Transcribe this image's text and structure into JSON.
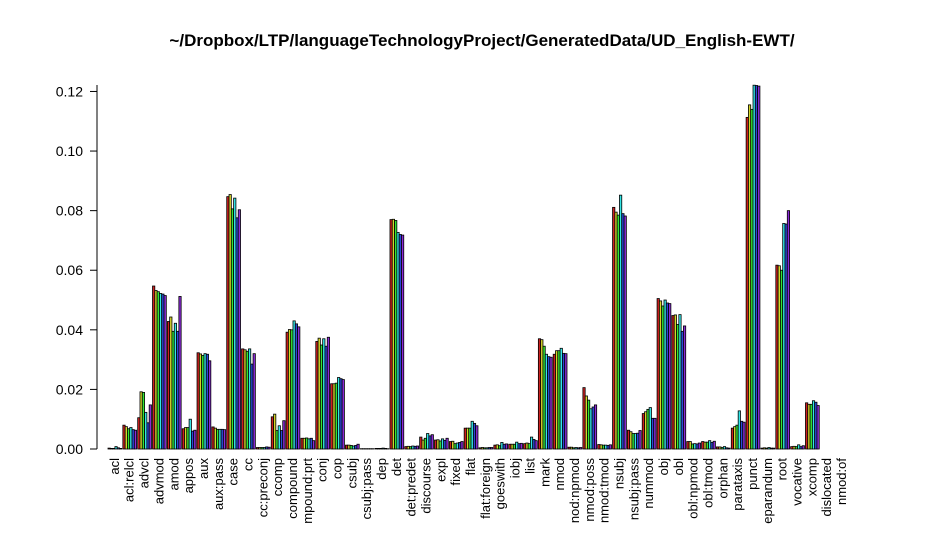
{
  "chart_data": {
    "type": "bar",
    "title": "~/Dropbox/LTP/languageTechnologyProject/GeneratedData/UD_English-EWT/",
    "xlabel": "",
    "ylabel": "",
    "ylim": [
      0,
      0.122
    ],
    "yticks": [
      "0.00",
      "0.02",
      "0.04",
      "0.06",
      "0.08",
      "0.10",
      "0.12"
    ],
    "grid": false,
    "legend": "none",
    "series_colors": [
      "#cc2020",
      "#d6d62a",
      "#33e633",
      "#33e6e6",
      "#2a4ad6",
      "#8a2ad6"
    ],
    "categories": [
      "acl",
      "acl:relcl",
      "advcl",
      "advmod",
      "amod",
      "appos",
      "aux",
      "aux:pass",
      "case",
      "cc",
      "cc:preconj",
      "ccomp",
      "compound",
      "compound:prt",
      "conj",
      "cop",
      "csubj",
      "csubj:pass",
      "dep",
      "det",
      "det:predet",
      "discourse",
      "expl",
      "fixed",
      "flat",
      "flat:foreign",
      "goeswith",
      "iobj",
      "list",
      "mark",
      "nmod",
      "nmod:npmod",
      "nmod:poss",
      "nmod:tmod",
      "nsubj",
      "nsubj:pass",
      "nummod",
      "obj",
      "obl",
      "obl:npmod",
      "obl:tmod",
      "orphan",
      "parataxis",
      "punct",
      "reparandum",
      "root",
      "vocative",
      "xcomp",
      "dislocated",
      "nmod:of"
    ],
    "category_display": [
      "acl",
      "acl:relcl",
      "advcl",
      "advmod",
      "amod",
      "appos",
      "aux",
      "aux:pass",
      "case",
      "cc",
      "cc:preconj",
      "ccomp",
      "compound",
      "mpound:prt",
      "conj",
      "cop",
      "csubj",
      "csubj:pass",
      "dep",
      "det",
      "det:predet",
      "discourse",
      "expl",
      "fixed",
      "flat",
      "flat:foreign",
      "goeswith",
      "iobj",
      "list",
      "mark",
      "nmod",
      "nod:npmod",
      "nmod:poss",
      "nmod:tmod",
      "nsubj",
      "nsubj:pass",
      "nummod",
      "obj",
      "obl",
      "obl:npmod",
      "obl:tmod",
      "orphan",
      "parataxis",
      "punct",
      "eparandum",
      "root",
      "vocative",
      "xcomp",
      "dislocated",
      "nmod:of"
    ],
    "series": [
      {
        "values": [
          0.0003,
          0.008,
          0.0105,
          0.0547,
          0.0428,
          0.0068,
          0.0323,
          0.0074,
          0.0847,
          0.0336,
          0.0005,
          0.0108,
          0.0392,
          0.0036,
          0.0361,
          0.0219,
          0.0013,
          0.0001,
          0.0002,
          0.077,
          0.0008,
          0.004,
          0.003,
          0.0025,
          0.007,
          0.0004,
          0.0013,
          0.0016,
          0.0018,
          0.037,
          0.0318,
          0.0006,
          0.0206,
          0.0015,
          0.0811,
          0.0063,
          0.0119,
          0.0505,
          0.0448,
          0.0025,
          0.0025,
          0.0007,
          0.007,
          0.1113,
          0.0003,
          0.0617,
          0.0008,
          0.0155,
          0.0,
          0.0
        ]
      },
      {
        "values": [
          0.0002,
          0.0075,
          0.0192,
          0.0532,
          0.0443,
          0.0072,
          0.0319,
          0.007,
          0.0854,
          0.0333,
          0.0005,
          0.0117,
          0.0401,
          0.0036,
          0.0372,
          0.0219,
          0.0013,
          0.0001,
          0.0002,
          0.0771,
          0.0009,
          0.003,
          0.0031,
          0.0026,
          0.007,
          0.0005,
          0.0014,
          0.0016,
          0.002,
          0.0367,
          0.033,
          0.0006,
          0.0178,
          0.0014,
          0.0795,
          0.0058,
          0.0125,
          0.0497,
          0.045,
          0.0025,
          0.0023,
          0.0007,
          0.0075,
          0.1155,
          0.0004,
          0.0615,
          0.0009,
          0.015,
          0.0,
          0.0
        ]
      },
      {
        "values": [
          0.0002,
          0.0068,
          0.019,
          0.0528,
          0.0395,
          0.0072,
          0.0314,
          0.0066,
          0.0806,
          0.0328,
          0.0005,
          0.0062,
          0.04,
          0.0037,
          0.0349,
          0.0221,
          0.0012,
          0.0001,
          0.0002,
          0.0767,
          0.0008,
          0.0036,
          0.0027,
          0.0018,
          0.007,
          0.0004,
          0.0011,
          0.0016,
          0.0018,
          0.0345,
          0.033,
          0.0004,
          0.0164,
          0.0013,
          0.0785,
          0.0052,
          0.0133,
          0.048,
          0.0418,
          0.0017,
          0.0023,
          0.0005,
          0.008,
          0.114,
          0.0003,
          0.06,
          0.0008,
          0.015,
          0.0,
          0.0
        ]
      },
      {
        "values": [
          0.0008,
          0.0072,
          0.0123,
          0.0522,
          0.0422,
          0.01,
          0.032,
          0.0066,
          0.0842,
          0.0336,
          0.0005,
          0.0078,
          0.043,
          0.0034,
          0.037,
          0.024,
          0.001,
          0.0001,
          0.0003,
          0.0727,
          0.001,
          0.0052,
          0.0034,
          0.002,
          0.0093,
          0.0004,
          0.0022,
          0.0023,
          0.004,
          0.0318,
          0.0338,
          0.0005,
          0.0135,
          0.0013,
          0.0852,
          0.0052,
          0.0139,
          0.05,
          0.0451,
          0.0018,
          0.0028,
          0.0008,
          0.0128,
          0.1221,
          0.0005,
          0.0757,
          0.0014,
          0.0162,
          0.0,
          0.0
        ]
      },
      {
        "values": [
          0.0004,
          0.0065,
          0.0088,
          0.052,
          0.0395,
          0.006,
          0.0318,
          0.0066,
          0.0776,
          0.0285,
          0.0007,
          0.0062,
          0.042,
          0.0036,
          0.0345,
          0.0236,
          0.0012,
          0.0001,
          0.0002,
          0.072,
          0.0009,
          0.0044,
          0.0029,
          0.0022,
          0.0086,
          0.0005,
          0.0016,
          0.0018,
          0.0032,
          0.031,
          0.0321,
          0.0004,
          0.0141,
          0.0012,
          0.079,
          0.0053,
          0.0103,
          0.049,
          0.0395,
          0.0017,
          0.0022,
          0.0004,
          0.0093,
          0.122,
          0.0003,
          0.0755,
          0.0008,
          0.0157,
          0.0,
          0.0
        ]
      },
      {
        "values": [
          0.0002,
          0.0063,
          0.0148,
          0.0515,
          0.0512,
          0.0063,
          0.0296,
          0.0065,
          0.0803,
          0.032,
          0.0006,
          0.0095,
          0.041,
          0.0028,
          0.0375,
          0.0233,
          0.0016,
          0.0001,
          0.0001,
          0.0718,
          0.001,
          0.0048,
          0.0036,
          0.0025,
          0.0078,
          0.0005,
          0.0017,
          0.0019,
          0.0028,
          0.0308,
          0.032,
          0.0005,
          0.0148,
          0.0014,
          0.0782,
          0.0062,
          0.0103,
          0.0488,
          0.0413,
          0.002,
          0.0026,
          0.0003,
          0.009,
          0.1218,
          0.0003,
          0.08,
          0.0011,
          0.0146,
          0.0,
          0.0
        ]
      }
    ]
  }
}
